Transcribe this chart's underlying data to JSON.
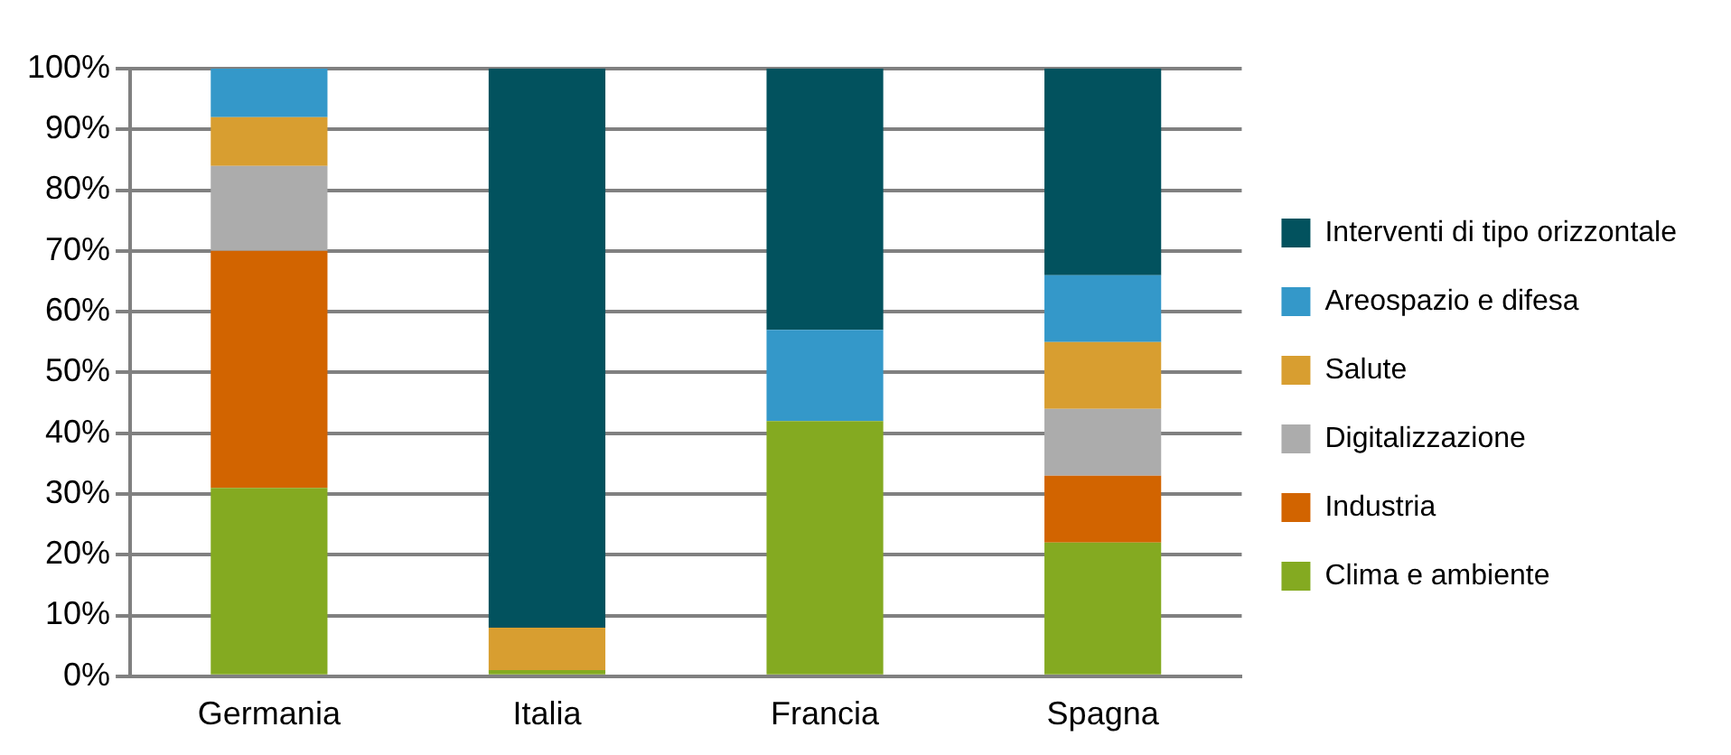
{
  "chart_data": {
    "type": "bar",
    "stacked": true,
    "categories": [
      "Germania",
      "Italia",
      "Francia",
      "Spagna"
    ],
    "series": [
      {
        "name": "Clima e ambiente",
        "color": "#84aa21",
        "values": [
          31,
          1,
          42,
          22
        ]
      },
      {
        "name": "Industria",
        "color": "#d26400",
        "values": [
          39,
          0,
          0,
          11
        ]
      },
      {
        "name": "Digitalizzazione",
        "color": "#acacac",
        "values": [
          14,
          0,
          0,
          11
        ]
      },
      {
        "name": "Salute",
        "color": "#d89e30",
        "values": [
          8,
          7,
          0,
          11
        ]
      },
      {
        "name": "Areospazio e difesa",
        "color": "#3498c9",
        "values": [
          8,
          0,
          15,
          11
        ]
      },
      {
        "name": "Interventi di tipo orizzontale",
        "color": "#02525e",
        "values": [
          0,
          92,
          43,
          34
        ]
      }
    ],
    "ylim": [
      0,
      100
    ],
    "yticks": [
      {
        "value": 0,
        "label": "0%"
      },
      {
        "value": 10,
        "label": "10%"
      },
      {
        "value": 20,
        "label": "20%"
      },
      {
        "value": 30,
        "label": "30%"
      },
      {
        "value": 40,
        "label": "40%"
      },
      {
        "value": 50,
        "label": "50%"
      },
      {
        "value": 60,
        "label": "60%"
      },
      {
        "value": 70,
        "label": "70%"
      },
      {
        "value": 80,
        "label": "80%"
      },
      {
        "value": 90,
        "label": "90%"
      },
      {
        "value": 100,
        "label": "100%"
      }
    ],
    "grid": "y",
    "legend": "right"
  }
}
